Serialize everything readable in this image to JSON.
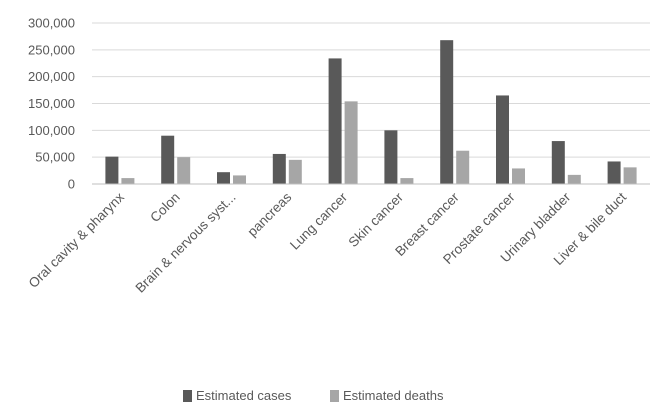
{
  "chart_data": {
    "type": "bar",
    "title": "",
    "xlabel": "",
    "ylabel": "",
    "categories": [
      "Oral cavity & pharynx",
      "Colon",
      "Brain & nervous syst...",
      "pancreas",
      "Lung cancer",
      "Skin cancer",
      "Breast cancer",
      "Prostate cancer",
      "Urinary bladder",
      "Liver & bile duct"
    ],
    "series": [
      {
        "name": "Estimated cases",
        "color": "#595959",
        "values": [
          51000,
          90000,
          22000,
          56000,
          234000,
          100000,
          268000,
          165000,
          80000,
          42000
        ]
      },
      {
        "name": "Estimated deaths",
        "color": "#a6a6a6",
        "values": [
          11000,
          50000,
          16000,
          45000,
          154000,
          11000,
          62000,
          29000,
          17000,
          31000
        ]
      }
    ],
    "yticks": [
      "300,000",
      "250,000",
      "200,000",
      "150,000",
      "100,000",
      "50,000",
      "0"
    ],
    "ylim": [
      0,
      300000
    ],
    "grid": true,
    "legend_position": "bottom"
  }
}
